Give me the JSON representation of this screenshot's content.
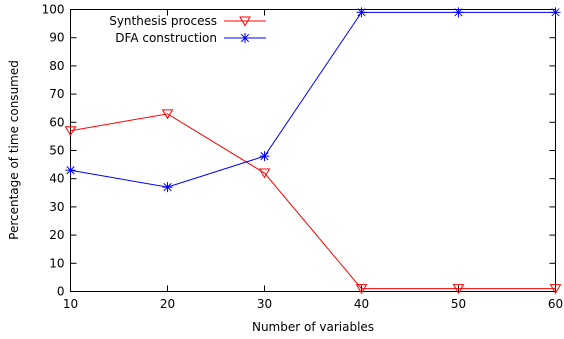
{
  "chart_data": {
    "type": "line",
    "title": "",
    "xlabel": "Number of variables",
    "ylabel": "Percentage of time consumed",
    "x": [
      10,
      20,
      30,
      40,
      50,
      60
    ],
    "xlim": [
      10,
      60
    ],
    "ylim": [
      0,
      100
    ],
    "x_ticks": [
      "10",
      "20",
      "30",
      "40",
      "50",
      "60"
    ],
    "y_ticks": [
      "0",
      "10",
      "20",
      "30",
      "40",
      "50",
      "60",
      "70",
      "80",
      "90",
      "100"
    ],
    "grid": false,
    "legend_position": "top-left",
    "series": [
      {
        "name": "Synthesis process",
        "color": "#ff0000",
        "marker": "triangle-down",
        "values": [
          57,
          63,
          42,
          1,
          1,
          1
        ]
      },
      {
        "name": "DFA construction",
        "color": "#0000ff",
        "marker": "asterisk",
        "values": [
          43,
          37,
          48,
          99,
          99,
          99
        ]
      }
    ]
  }
}
